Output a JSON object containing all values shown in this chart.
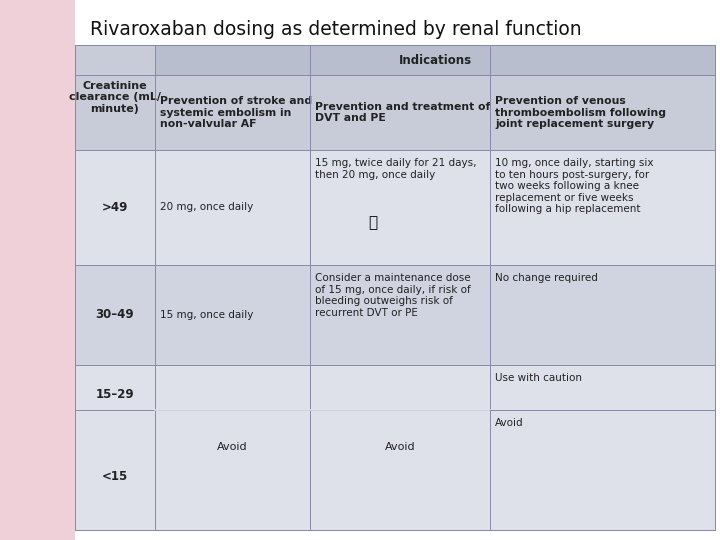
{
  "title": "Rivaroxaban dosing as determined by renal function",
  "title_fontsize": 13.5,
  "bg_pink": "#f0d0d8",
  "bg_white": "#ffffff",
  "header_bg": "#b8bece",
  "subheader_bg": "#c8ccd8",
  "row1_bg": "#dfe1ea",
  "row2_bg": "#d0d3e0",
  "row3_bg": "#dfe1ea",
  "row4_bg": "#dfe1ea",
  "col0_header": "Creatinine\nclearance (mL/\nminute)",
  "col_header_text": "Indications",
  "col1_header": "Prevention of stroke and\nsystemic embolism in\nnon-valvular AF",
  "col2_header": "Prevention and treatment of\nDVT and PE",
  "col3_header": "Prevention of venous\nthromboembolism following\njoint replacement surgery",
  "rows": [
    {
      "creatinine": ">49",
      "col1": "20 mg, once daily",
      "col2": "15 mg, twice daily for 21 days,\nthen 20 mg, once daily",
      "col3": "10 mg, once daily, starting six\nto ten hours post-surgery, for\ntwo weeks following a knee\nreplacement or five weeks\nfollowing a hip replacement"
    },
    {
      "creatinine": "30–49",
      "col1": "15 mg, once daily",
      "col2": "Consider a maintenance dose\nof 15 mg, once daily, if risk of\nbleeding outweighs risk of\nrecurrent DVT or PE",
      "col3": "No change required"
    },
    {
      "creatinine": "15–29",
      "col1": "",
      "col2": "",
      "col3": "Use with caution"
    },
    {
      "creatinine": "<15",
      "col1": "",
      "col2": "",
      "col3": "Avoid"
    }
  ]
}
